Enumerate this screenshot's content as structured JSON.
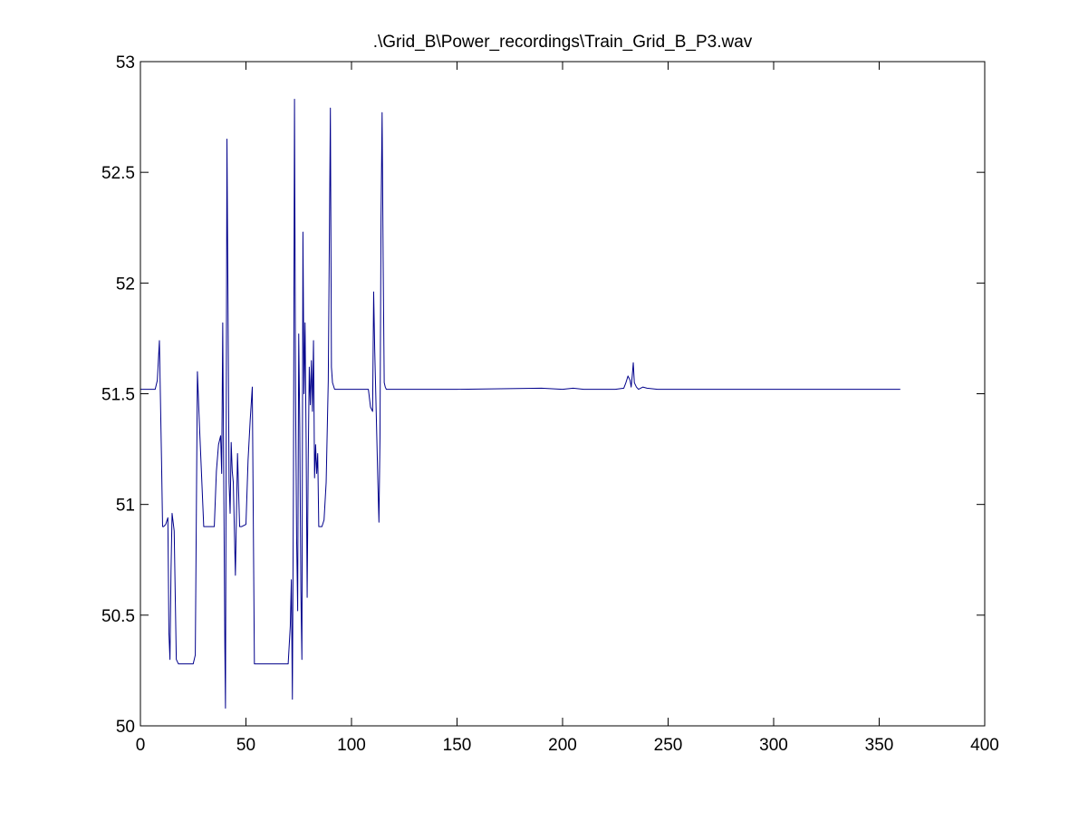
{
  "chart_data": {
    "type": "line",
    "title": ".\\Grid_B\\Power_recordings\\Train_Grid_B_P3.wav",
    "xlabel": "",
    "ylabel": "",
    "xlim": [
      0,
      400
    ],
    "ylim": [
      50,
      53
    ],
    "xticks": [
      0,
      50,
      100,
      150,
      200,
      250,
      300,
      350,
      400
    ],
    "yticks": [
      50,
      50.5,
      51,
      51.5,
      52,
      52.5,
      53
    ],
    "xtick_labels": [
      "0",
      "50",
      "100",
      "150",
      "200",
      "250",
      "300",
      "350",
      "400"
    ],
    "ytick_labels": [
      "50",
      "50.5",
      "51",
      "51.5",
      "52",
      "52.5",
      "53"
    ],
    "grid": false,
    "line_color": "#00008B",
    "background": "#ffffff",
    "series": [
      {
        "x": [
          0,
          7,
          8,
          9,
          10,
          10.5,
          11,
          12,
          13,
          13.5,
          14,
          14.5,
          15,
          16,
          17,
          18,
          20,
          25,
          26,
          27,
          28,
          30,
          35,
          36,
          37,
          38,
          38.5,
          39,
          40,
          40.3,
          41,
          41.5,
          42,
          42.5,
          43,
          43.5,
          44,
          45,
          46,
          47,
          48,
          50,
          51,
          52,
          53,
          54,
          60,
          65,
          70,
          71,
          71.5,
          72,
          72.5,
          73,
          73.5,
          74,
          74.5,
          75,
          75.5,
          76,
          76.5,
          77,
          77.5,
          78,
          78.5,
          79,
          79.5,
          80,
          80.5,
          81,
          81.5,
          82,
          82.5,
          83,
          83.5,
          84,
          84.5,
          85,
          86,
          87,
          88,
          89,
          90,
          90.5,
          91,
          92,
          95,
          100,
          105,
          108,
          109,
          110,
          110.5,
          111,
          112,
          112.5,
          113,
          113.5,
          114,
          114.5,
          115,
          115.5,
          116,
          116.5,
          117,
          118,
          125,
          150,
          190,
          200,
          205,
          210,
          215,
          225,
          229,
          230,
          231,
          232,
          232.5,
          233,
          233.5,
          234,
          235,
          236,
          238,
          240,
          245,
          250,
          300,
          360
        ],
        "y": [
          51.52,
          51.52,
          51.56,
          51.74,
          51.2,
          50.9,
          50.9,
          50.91,
          50.94,
          50.42,
          50.3,
          50.7,
          50.96,
          50.88,
          50.3,
          50.28,
          50.28,
          50.28,
          50.32,
          51.6,
          51.35,
          50.9,
          50.9,
          51.15,
          51.27,
          51.31,
          51.14,
          51.82,
          50.36,
          50.08,
          52.65,
          51.9,
          51.1,
          50.96,
          51.28,
          51.15,
          51.1,
          50.68,
          51.23,
          50.9,
          50.9,
          50.91,
          51.2,
          51.38,
          51.53,
          50.28,
          50.28,
          50.28,
          50.28,
          50.45,
          50.66,
          50.12,
          51.1,
          52.83,
          51.5,
          50.85,
          50.52,
          51.77,
          51.35,
          50.62,
          50.3,
          52.23,
          51.5,
          51.82,
          51.3,
          50.58,
          51.2,
          51.62,
          51.45,
          51.65,
          51.42,
          51.74,
          51.12,
          51.27,
          51.14,
          51.23,
          50.9,
          50.9,
          50.9,
          50.93,
          51.1,
          51.56,
          52.79,
          51.62,
          51.55,
          51.52,
          51.52,
          51.52,
          51.52,
          51.52,
          51.44,
          51.42,
          51.96,
          51.7,
          51.3,
          51.1,
          50.92,
          51.3,
          52.3,
          52.77,
          52.1,
          51.55,
          51.53,
          51.52,
          51.52,
          51.52,
          51.52,
          51.52,
          51.525,
          51.52,
          51.525,
          51.52,
          51.52,
          51.52,
          51.525,
          51.55,
          51.58,
          51.56,
          51.53,
          51.58,
          51.64,
          51.55,
          51.53,
          51.52,
          51.53,
          51.525,
          51.52,
          51.52,
          51.52,
          51.52
        ]
      }
    ]
  }
}
